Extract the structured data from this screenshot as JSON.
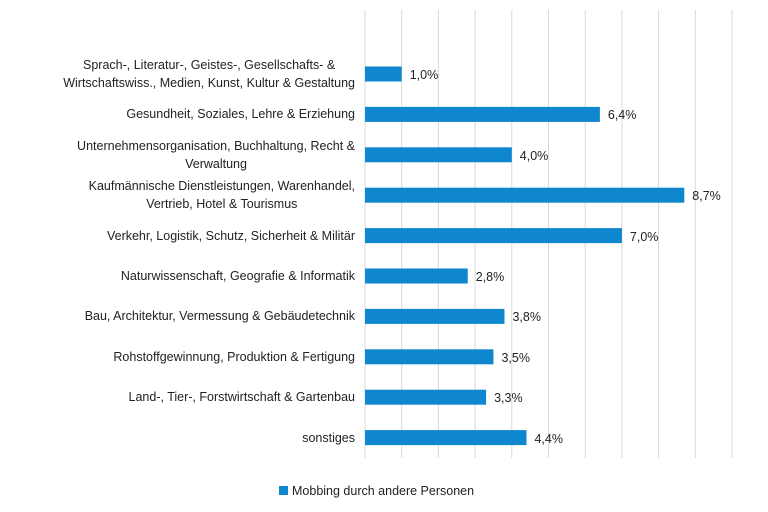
{
  "chart_data": {
    "type": "bar",
    "orientation": "horizontal",
    "categories": [
      "Sprach-, Literatur-, Geistes-, Gesellschafts- &\nWirtschaftswiss., Medien, Kunst, Kultur & Gestaltung",
      "Gesundheit, Soziales, Lehre & Erziehung",
      "Unternehmensorganisation, Buchhaltung, Recht &\nVerwaltung",
      "Kaufmännische Dienstleistungen, Warenhandel,\nVertrieb, Hotel & Tourismus",
      "Verkehr, Logistik, Schutz, Sicherheit & Militär",
      "Naturwissenschaft, Geografie & Informatik",
      "Bau, Architektur, Vermessung & Gebäudetechnik",
      "Rohstoffgewinnung, Produktion & Fertigung",
      "Land-, Tier-, Forstwirtschaft & Gartenbau",
      "sonstiges"
    ],
    "series": [
      {
        "name": "Mobbing durch andere Personen",
        "color": "#0f87cf",
        "values": [
          1.0,
          6.4,
          4.0,
          8.7,
          7.0,
          2.8,
          3.8,
          3.5,
          3.3,
          4.4
        ],
        "value_labels": [
          "1,0%",
          "6,4%",
          "4,0%",
          "8,7%",
          "7,0%",
          "2,8%",
          "3,8%",
          "3,5%",
          "3,3%",
          "4,4%"
        ]
      }
    ],
    "xlim": [
      0,
      10
    ],
    "xticks": [
      0,
      1,
      2,
      3,
      4,
      5,
      6,
      7,
      8,
      9,
      10
    ],
    "grid": true,
    "legend": "bottom"
  }
}
